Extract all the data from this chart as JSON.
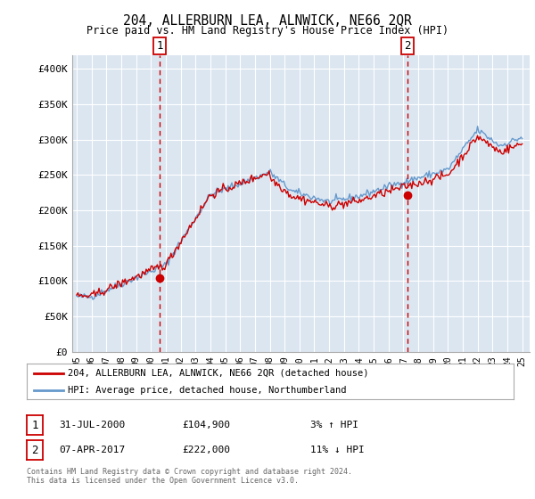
{
  "title": "204, ALLERBURN LEA, ALNWICK, NE66 2QR",
  "subtitle": "Price paid vs. HM Land Registry's House Price Index (HPI)",
  "legend_line1": "204, ALLERBURN LEA, ALNWICK, NE66 2QR (detached house)",
  "legend_line2": "HPI: Average price, detached house, Northumberland",
  "annotation1_date": "31-JUL-2000",
  "annotation1_price": "£104,900",
  "annotation1_hpi": "3% ↑ HPI",
  "annotation2_date": "07-APR-2017",
  "annotation2_price": "£222,000",
  "annotation2_hpi": "11% ↓ HPI",
  "footer": "Contains HM Land Registry data © Crown copyright and database right 2024.\nThis data is licensed under the Open Government Licence v3.0.",
  "ylim": [
    0,
    420000
  ],
  "yticks": [
    0,
    50000,
    100000,
    150000,
    200000,
    250000,
    300000,
    350000,
    400000
  ],
  "ytick_labels": [
    "£0",
    "£50K",
    "£100K",
    "£150K",
    "£200K",
    "£250K",
    "£300K",
    "£350K",
    "£400K"
  ],
  "price_color": "#cc0000",
  "hpi_color": "#6699cc",
  "background_color": "#dce6f1",
  "annotation_vline_color": "#cc0000",
  "grid_color": "#ffffff",
  "sale1_x": 2000.58,
  "sale1_y": 104900,
  "sale2_x": 2017.27,
  "sale2_y": 222000,
  "xmin": 1995,
  "xmax": 2025
}
